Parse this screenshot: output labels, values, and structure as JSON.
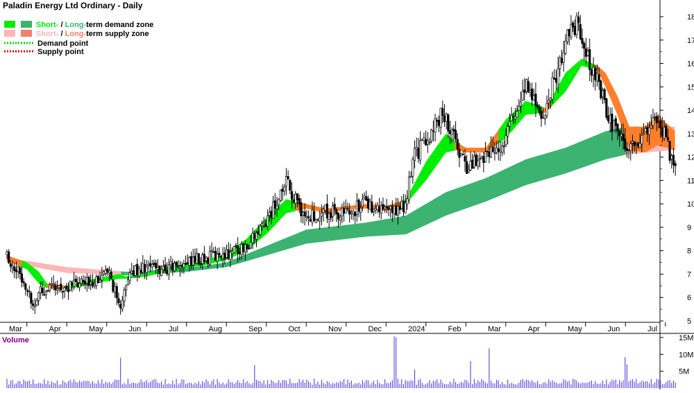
{
  "header": {
    "title": "Paladin Energy Ltd Ordinary - Daily"
  },
  "legend": [
    {
      "short": "Short-",
      "sep": " / ",
      "long": "Long-",
      "rest": "term demand zone",
      "text_color": "#22aa22",
      "short_color": "#00ee00",
      "long_color": "#3cb371"
    },
    {
      "short": "Short-",
      "sep": " / ",
      "long": "Long-",
      "rest": "term supply zone",
      "text_color": "#e07070",
      "short_color": "#ffb6b6",
      "long_color": "#f08070"
    },
    {
      "label": "Demand point",
      "color": "#00dd00"
    },
    {
      "label": "Supply point",
      "color": "#dd0000"
    }
  ],
  "volume_panel": {
    "label": "Volume",
    "ticks": [
      "15M",
      "10M",
      "5M"
    ],
    "tick_values": [
      15,
      10,
      5
    ]
  },
  "chart_data": {
    "type": "candlestick",
    "title": "Paladin Energy Ltd Ordinary - Daily",
    "x_ticks": [
      "Mar",
      "Apr",
      "May",
      "Jun",
      "Jul",
      "Aug",
      "Sep",
      "Oct",
      "Nov",
      "Dec",
      "2024",
      "Feb",
      "Mar",
      "Apr",
      "May",
      "Jun",
      "Jul"
    ],
    "y_ticks": [
      5,
      6,
      7,
      8,
      9,
      10,
      11,
      12,
      13,
      14,
      15,
      16,
      17,
      18
    ],
    "ylim": [
      4.8,
      18.5
    ],
    "grid": false,
    "price_series": [
      {
        "t": 0,
        "v": 7.8
      },
      {
        "t": 0.2,
        "v": 7.3
      },
      {
        "t": 0.45,
        "v": 6.7
      },
      {
        "t": 0.65,
        "v": 5.6
      },
      {
        "t": 0.85,
        "v": 6.4
      },
      {
        "t": 1.0,
        "v": 6.3
      },
      {
        "t": 1.5,
        "v": 6.45
      },
      {
        "t": 2.0,
        "v": 6.6
      },
      {
        "t": 2.3,
        "v": 6.9
      },
      {
        "t": 2.6,
        "v": 6.9
      },
      {
        "t": 2.85,
        "v": 5.3
      },
      {
        "t": 3.0,
        "v": 6.8
      },
      {
        "t": 3.3,
        "v": 7.3
      },
      {
        "t": 4.0,
        "v": 7.2
      },
      {
        "t": 4.7,
        "v": 7.6
      },
      {
        "t": 5.0,
        "v": 7.7
      },
      {
        "t": 5.5,
        "v": 7.9
      },
      {
        "t": 6.0,
        "v": 8.2
      },
      {
        "t": 6.4,
        "v": 9.0
      },
      {
        "t": 6.8,
        "v": 10.2
      },
      {
        "t": 7.0,
        "v": 10.9
      },
      {
        "t": 7.2,
        "v": 10.2
      },
      {
        "t": 7.5,
        "v": 9.4
      },
      {
        "t": 8.0,
        "v": 9.7
      },
      {
        "t": 8.5,
        "v": 9.5
      },
      {
        "t": 9.0,
        "v": 10.1
      },
      {
        "t": 9.5,
        "v": 9.6
      },
      {
        "t": 10.0,
        "v": 10.0
      },
      {
        "t": 10.2,
        "v": 12.1
      },
      {
        "t": 10.5,
        "v": 12.6
      },
      {
        "t": 10.9,
        "v": 13.9
      },
      {
        "t": 11.2,
        "v": 12.8
      },
      {
        "t": 11.5,
        "v": 11.6
      },
      {
        "t": 12.0,
        "v": 12.1
      },
      {
        "t": 12.4,
        "v": 12.6
      },
      {
        "t": 12.8,
        "v": 14.2
      },
      {
        "t": 13.1,
        "v": 15.2
      },
      {
        "t": 13.4,
        "v": 13.3
      },
      {
        "t": 13.7,
        "v": 15.2
      },
      {
        "t": 14.0,
        "v": 16.9
      },
      {
        "t": 14.3,
        "v": 17.7
      },
      {
        "t": 14.5,
        "v": 16.3
      },
      {
        "t": 14.8,
        "v": 15.4
      },
      {
        "t": 15.0,
        "v": 14.0
      },
      {
        "t": 15.3,
        "v": 12.9
      },
      {
        "t": 15.6,
        "v": 12.4
      },
      {
        "t": 15.9,
        "v": 12.8
      },
      {
        "t": 16.1,
        "v": 13.4
      },
      {
        "t": 16.3,
        "v": 13.8
      },
      {
        "t": 16.5,
        "v": 12.8
      },
      {
        "t": 16.75,
        "v": 11.4
      }
    ],
    "long_term_zone": [
      {
        "t": 0,
        "lo": 7.5,
        "hi": 7.7
      },
      {
        "t": 1.5,
        "lo": 7.05,
        "hi": 7.3
      },
      {
        "t": 3.0,
        "lo": 6.95,
        "hi": 7.1
      },
      {
        "t": 4.5,
        "lo": 7.1,
        "hi": 7.25
      },
      {
        "t": 5.5,
        "lo": 7.3,
        "hi": 7.5
      },
      {
        "t": 6.5,
        "lo": 7.8,
        "hi": 8.2
      },
      {
        "t": 7.5,
        "lo": 8.3,
        "hi": 8.9
      },
      {
        "t": 9.0,
        "lo": 8.6,
        "hi": 9.2
      },
      {
        "t": 10.0,
        "lo": 8.7,
        "hi": 9.5
      },
      {
        "t": 11.0,
        "lo": 9.5,
        "hi": 10.5
      },
      {
        "t": 12.0,
        "lo": 10.1,
        "hi": 11.1
      },
      {
        "t": 13.0,
        "lo": 10.8,
        "hi": 11.9
      },
      {
        "t": 14.0,
        "lo": 11.3,
        "hi": 12.4
      },
      {
        "t": 15.0,
        "lo": 11.9,
        "hi": 13.1
      },
      {
        "t": 15.5,
        "lo": 12.1,
        "hi": 13.3
      },
      {
        "t": 16.0,
        "lo": 12.2,
        "hi": 13.3
      },
      {
        "t": 16.75,
        "lo": 12.3,
        "hi": 13.3
      }
    ],
    "short_term_zone": [
      {
        "t": 0,
        "lo": 7.6,
        "hi": 7.8
      },
      {
        "t": 0.5,
        "lo": 7.2,
        "hi": 7.5
      },
      {
        "t": 0.8,
        "lo": 6.6,
        "hi": 7.1
      },
      {
        "t": 1.0,
        "lo": 6.4,
        "hi": 6.6
      },
      {
        "t": 1.5,
        "lo": 6.35,
        "hi": 6.5
      },
      {
        "t": 2.2,
        "lo": 6.6,
        "hi": 6.8
      },
      {
        "t": 2.8,
        "lo": 6.8,
        "hi": 7.0
      },
      {
        "t": 3.0,
        "lo": 6.8,
        "hi": 6.9
      },
      {
        "t": 3.5,
        "lo": 6.9,
        "hi": 7.0
      },
      {
        "t": 4.0,
        "lo": 7.1,
        "hi": 7.3
      },
      {
        "t": 5.0,
        "lo": 7.4,
        "hi": 7.6
      },
      {
        "t": 5.5,
        "lo": 7.6,
        "hi": 7.9
      },
      {
        "t": 6.0,
        "lo": 8.0,
        "hi": 8.5
      },
      {
        "t": 6.5,
        "lo": 8.7,
        "hi": 9.4
      },
      {
        "t": 7.0,
        "lo": 9.6,
        "hi": 10.2
      },
      {
        "t": 7.5,
        "lo": 9.8,
        "hi": 10.0
      },
      {
        "t": 8.0,
        "lo": 9.6,
        "hi": 9.8
      },
      {
        "t": 8.5,
        "lo": 9.75,
        "hi": 9.9
      },
      {
        "t": 9.0,
        "lo": 9.8,
        "hi": 10.0
      },
      {
        "t": 9.5,
        "lo": 9.7,
        "hi": 9.9
      },
      {
        "t": 10.0,
        "lo": 10.0,
        "hi": 10.2
      },
      {
        "t": 10.5,
        "lo": 11.0,
        "hi": 11.8
      },
      {
        "t": 11.0,
        "lo": 12.2,
        "hi": 13.0
      },
      {
        "t": 11.3,
        "lo": 12.3,
        "hi": 12.6
      },
      {
        "t": 11.5,
        "lo": 12.2,
        "hi": 12.4
      },
      {
        "t": 12.0,
        "lo": 12.2,
        "hi": 12.4
      },
      {
        "t": 12.5,
        "lo": 12.8,
        "hi": 13.6
      },
      {
        "t": 13.0,
        "lo": 13.8,
        "hi": 14.4
      },
      {
        "t": 13.5,
        "lo": 13.9,
        "hi": 14.1
      },
      {
        "t": 14.0,
        "lo": 14.8,
        "hi": 15.6
      },
      {
        "t": 14.4,
        "lo": 15.9,
        "hi": 16.2
      },
      {
        "t": 14.8,
        "lo": 15.7,
        "hi": 15.9
      },
      {
        "t": 15.0,
        "lo": 15.0,
        "hi": 15.6
      },
      {
        "t": 15.3,
        "lo": 13.8,
        "hi": 14.6
      },
      {
        "t": 15.6,
        "lo": 12.3,
        "hi": 13.3
      },
      {
        "t": 16.0,
        "lo": 12.2,
        "hi": 13.3
      },
      {
        "t": 16.3,
        "lo": 12.5,
        "hi": 13.8
      },
      {
        "t": 16.75,
        "lo": 12.3,
        "hi": 13.1
      }
    ],
    "short_term_supply_segments": [
      [
        0,
        0.35
      ],
      [
        1.0,
        1.5
      ],
      [
        7.2,
        9.9
      ],
      [
        11.2,
        12.3
      ],
      [
        13.4,
        13.6
      ],
      [
        14.7,
        16.75
      ]
    ],
    "long_term_supply_segments": [
      [
        0,
        2.85
      ],
      [
        15.5,
        16.75
      ]
    ],
    "volume": {
      "ylabel": "Volume",
      "ylim": [
        0,
        16
      ],
      "baseline_millions": 2.0,
      "spikes": [
        {
          "t": 2.83,
          "v": 9.0
        },
        {
          "t": 6.2,
          "v": 6.8
        },
        {
          "t": 9.7,
          "v": 15.3
        },
        {
          "t": 9.74,
          "v": 15.0
        },
        {
          "t": 10.2,
          "v": 5.5
        },
        {
          "t": 11.6,
          "v": 8.0
        },
        {
          "t": 12.1,
          "v": 11.8
        },
        {
          "t": 15.5,
          "v": 9.2
        },
        {
          "t": 15.55,
          "v": 7.0
        }
      ]
    }
  }
}
